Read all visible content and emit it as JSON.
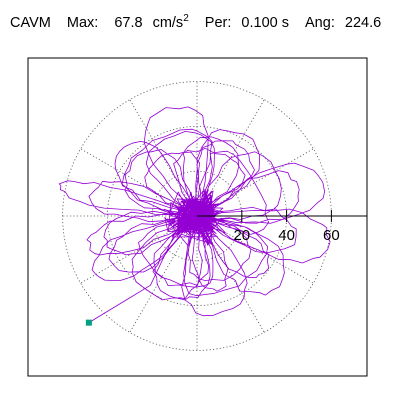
{
  "header": {
    "name": "CAVM",
    "max_label": "Max:",
    "max_value": "67.8",
    "max_unit": "cm/s",
    "max_unit_exp": "2",
    "per_label": "Per:",
    "per_value": "0.100 s",
    "ang_label": "Ang:",
    "ang_value": "224.6"
  },
  "colors": {
    "trace": "#9400d3",
    "marker": "#00a080",
    "frame": "#000000",
    "grid": "#555555"
  },
  "chart_data": {
    "type": "polar-trajectory",
    "title": "CAVM",
    "rmax": 67.8,
    "rings": [
      20,
      40,
      60
    ],
    "ring_labels": [
      "20",
      "40",
      "60"
    ],
    "spokes_deg": [
      0,
      30,
      60,
      90,
      120,
      150,
      180,
      210,
      240,
      270,
      300,
      330
    ],
    "grid": "dotted",
    "marker_point": {
      "r": 67.8,
      "angle_deg": 224.6
    },
    "lobes": [
      {
        "angle_deg": 168,
        "amp": 63,
        "width": 8
      },
      {
        "angle_deg": 348,
        "amp": 60,
        "width": 9
      },
      {
        "angle_deg": 140,
        "amp": 45,
        "width": 14
      },
      {
        "angle_deg": 320,
        "amp": 48,
        "width": 13
      },
      {
        "angle_deg": 60,
        "amp": 42,
        "width": 15
      },
      {
        "angle_deg": 240,
        "amp": 40,
        "width": 15
      },
      {
        "angle_deg": 105,
        "amp": 50,
        "width": 12
      },
      {
        "angle_deg": 285,
        "amp": 45,
        "width": 12
      },
      {
        "angle_deg": 30,
        "amp": 40,
        "width": 16
      },
      {
        "angle_deg": 210,
        "amp": 52,
        "width": 14
      },
      {
        "angle_deg": 15,
        "amp": 58,
        "width": 10
      },
      {
        "angle_deg": 195,
        "amp": 50,
        "width": 12
      },
      {
        "angle_deg": 75,
        "amp": 35,
        "width": 17
      },
      {
        "angle_deg": 255,
        "amp": 38,
        "width": 16
      },
      {
        "angle_deg": 120,
        "amp": 38,
        "width": 18
      },
      {
        "angle_deg": 300,
        "amp": 36,
        "width": 18
      }
    ]
  }
}
